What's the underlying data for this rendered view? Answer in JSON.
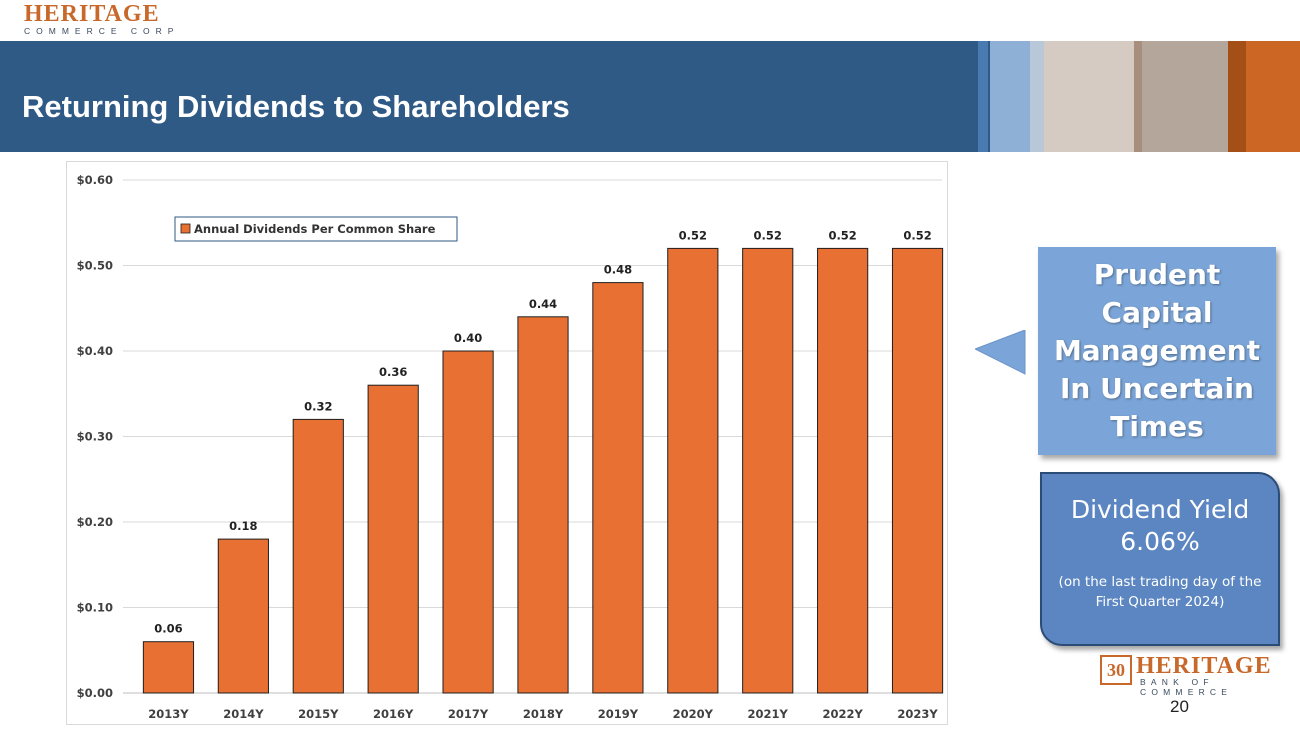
{
  "brand": {
    "top_logo_word": "HERITAGE",
    "top_logo_sub": "COMMERCE CORP",
    "bottom_logo_badge": "30",
    "bottom_logo_word": "HERITAGE",
    "bottom_logo_sub": "BANK OF COMMERCE",
    "accent_color": "#c8682a",
    "banner_color": "#2f5a86"
  },
  "slide": {
    "title": "Returning Dividends to Shareholders",
    "page_number": "20"
  },
  "callout": {
    "text": "Prudent Capital Management In Uncertain Times",
    "color": "#7ba5d8"
  },
  "yield_box": {
    "label": "Dividend Yield",
    "value": "6.06%",
    "note": "(on the last trading day of the First Quarter 2024)",
    "color": "#5c86c2"
  },
  "chart_data": {
    "type": "bar",
    "title": "",
    "xlabel": "",
    "ylabel": "",
    "categories": [
      "2013Y",
      "2014Y",
      "2015Y",
      "2016Y",
      "2017Y",
      "2018Y",
      "2019Y",
      "2020Y",
      "2021Y",
      "2022Y",
      "2023Y"
    ],
    "series": [
      {
        "name": "Annual Dividends Per Common Share",
        "values": [
          0.06,
          0.18,
          0.32,
          0.36,
          0.4,
          0.44,
          0.48,
          0.52,
          0.52,
          0.52,
          0.52
        ],
        "data_labels": [
          "0.06",
          "0.18",
          "0.32",
          "0.36",
          "0.40",
          "0.44",
          "0.48",
          "0.52",
          "0.52",
          "0.52",
          "0.52"
        ],
        "color": "#e87033"
      }
    ],
    "ylim": [
      0,
      0.6
    ],
    "y_ticks": [
      0,
      0.1,
      0.2,
      0.3,
      0.4,
      0.5,
      0.6
    ],
    "y_tick_labels": [
      "$0.00",
      "$0.10",
      "$0.20",
      "$0.30",
      "$0.40",
      "$0.50",
      "$0.60"
    ],
    "grid": true,
    "legend_position": "top-left"
  }
}
